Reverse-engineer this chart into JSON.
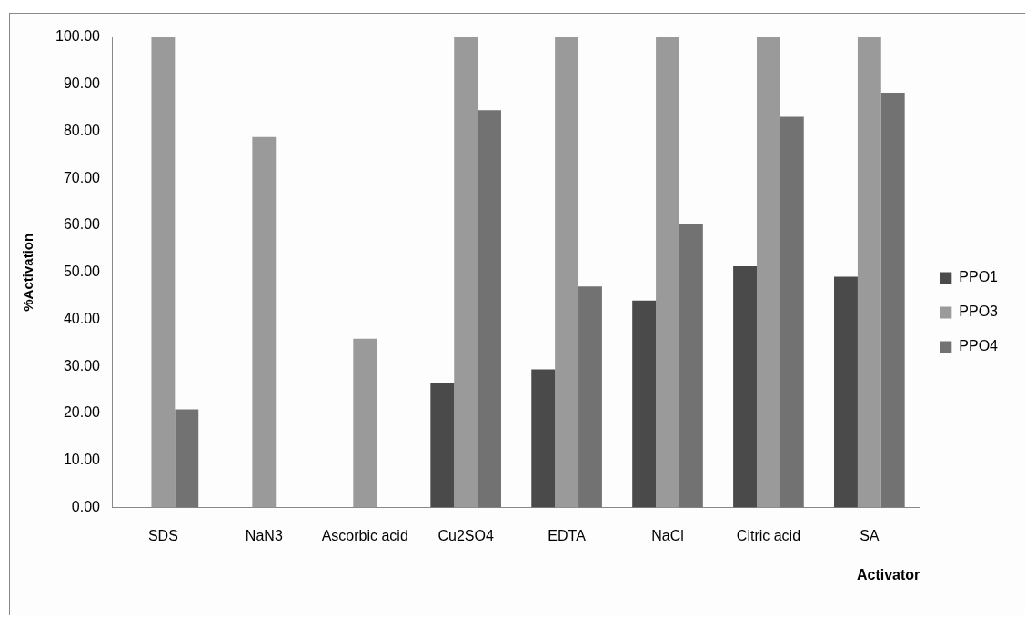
{
  "chart_data": {
    "type": "bar",
    "xlabel": "Activator",
    "ylabel": "%Activation",
    "categories": [
      "SDS",
      "NaN3",
      "Ascorbic acid",
      "Cu2SO4",
      "EDTA",
      "NaCl",
      "Citric acid",
      "SA"
    ],
    "series": [
      {
        "name": "PPO1",
        "color": "#4a4a4a",
        "values": [
          null,
          null,
          null,
          26.4,
          29.4,
          44.0,
          51.3,
          49.1
        ]
      },
      {
        "name": "PPO3",
        "color": "#9a9a9a",
        "values": [
          100,
          78.8,
          35.9,
          100,
          100,
          100,
          100,
          100
        ]
      },
      {
        "name": "PPO4",
        "color": "#727272",
        "values": [
          20.9,
          null,
          null,
          84.5,
          47.0,
          60.4,
          83.1,
          88.2
        ]
      }
    ],
    "ylim": [
      0,
      100
    ],
    "yticks": [
      {
        "value": 0,
        "label": "0.00"
      },
      {
        "value": 10,
        "label": "10.00"
      },
      {
        "value": 20,
        "label": "20.00"
      },
      {
        "value": 30,
        "label": "30.00"
      },
      {
        "value": 40,
        "label": "40.00"
      },
      {
        "value": 50,
        "label": "50.00"
      },
      {
        "value": 60,
        "label": "60.00"
      },
      {
        "value": 70,
        "label": "70.00"
      },
      {
        "value": 80,
        "label": "80.00"
      },
      {
        "value": 90,
        "label": "90.00"
      },
      {
        "value": 100,
        "label": "100.00"
      }
    ],
    "grid": false,
    "legend": "right"
  }
}
